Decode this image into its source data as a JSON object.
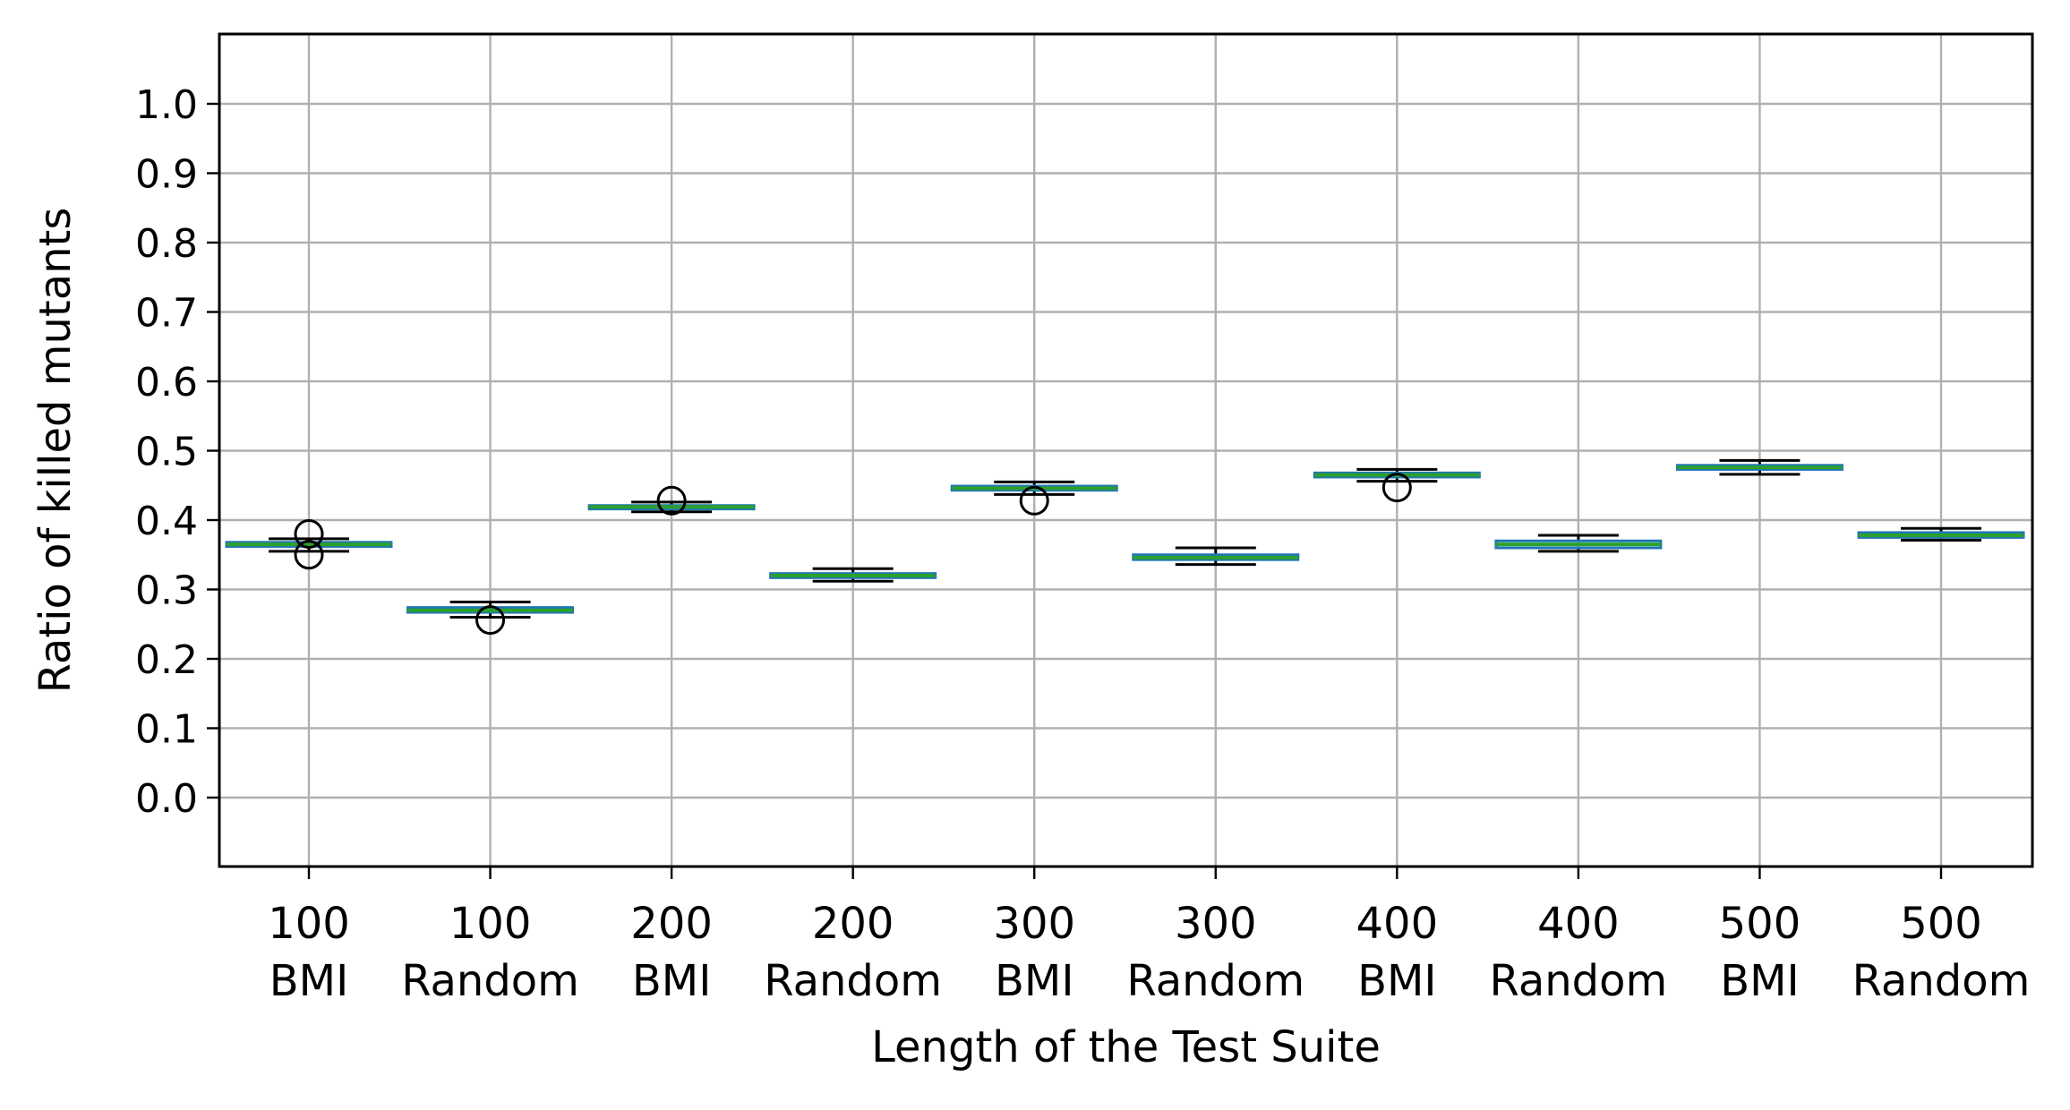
{
  "chart_data": {
    "type": "box",
    "xlabel": "Length of the Test Suite",
    "ylabel": "Ratio of killed mutants",
    "ylim": [
      -0.1,
      1.1
    ],
    "yticks": [
      "0.0",
      "0.1",
      "0.2",
      "0.3",
      "0.4",
      "0.5",
      "0.6",
      "0.7",
      "0.8",
      "0.9",
      "1.0"
    ],
    "grid": true,
    "colors": {
      "box": "#1f77b4",
      "median": "#2ca02c",
      "whisker": "#000000",
      "grid": "#b0b0b0",
      "axis": "#000000"
    },
    "categories": [
      {
        "line1": "100",
        "line2": "BMI",
        "q1": 0.362,
        "median": 0.365,
        "q3": 0.368,
        "whisker_low": 0.355,
        "whisker_high": 0.373,
        "outliers": [
          0.35,
          0.38
        ]
      },
      {
        "line1": "100",
        "line2": "Random",
        "q1": 0.267,
        "median": 0.27,
        "q3": 0.274,
        "whisker_low": 0.26,
        "whisker_high": 0.282,
        "outliers": [
          0.256
        ]
      },
      {
        "line1": "200",
        "line2": "BMI",
        "q1": 0.416,
        "median": 0.419,
        "q3": 0.421,
        "whisker_low": 0.412,
        "whisker_high": 0.426,
        "outliers": [
          0.428
        ]
      },
      {
        "line1": "200",
        "line2": "Random",
        "q1": 0.317,
        "median": 0.32,
        "q3": 0.323,
        "whisker_low": 0.312,
        "whisker_high": 0.33,
        "outliers": []
      },
      {
        "line1": "300",
        "line2": "BMI",
        "q1": 0.443,
        "median": 0.446,
        "q3": 0.449,
        "whisker_low": 0.437,
        "whisker_high": 0.455,
        "outliers": [
          0.428
        ]
      },
      {
        "line1": "300",
        "line2": "Random",
        "q1": 0.343,
        "median": 0.346,
        "q3": 0.35,
        "whisker_low": 0.336,
        "whisker_high": 0.36,
        "outliers": []
      },
      {
        "line1": "400",
        "line2": "BMI",
        "q1": 0.462,
        "median": 0.465,
        "q3": 0.468,
        "whisker_low": 0.456,
        "whisker_high": 0.473,
        "outliers": [
          0.447
        ]
      },
      {
        "line1": "400",
        "line2": "Random",
        "q1": 0.36,
        "median": 0.365,
        "q3": 0.37,
        "whisker_low": 0.355,
        "whisker_high": 0.378,
        "outliers": []
      },
      {
        "line1": "500",
        "line2": "BMI",
        "q1": 0.473,
        "median": 0.476,
        "q3": 0.479,
        "whisker_low": 0.466,
        "whisker_high": 0.486,
        "outliers": []
      },
      {
        "line1": "500",
        "line2": "Random",
        "q1": 0.375,
        "median": 0.378,
        "q3": 0.382,
        "whisker_low": 0.371,
        "whisker_high": 0.388,
        "outliers": []
      }
    ]
  }
}
